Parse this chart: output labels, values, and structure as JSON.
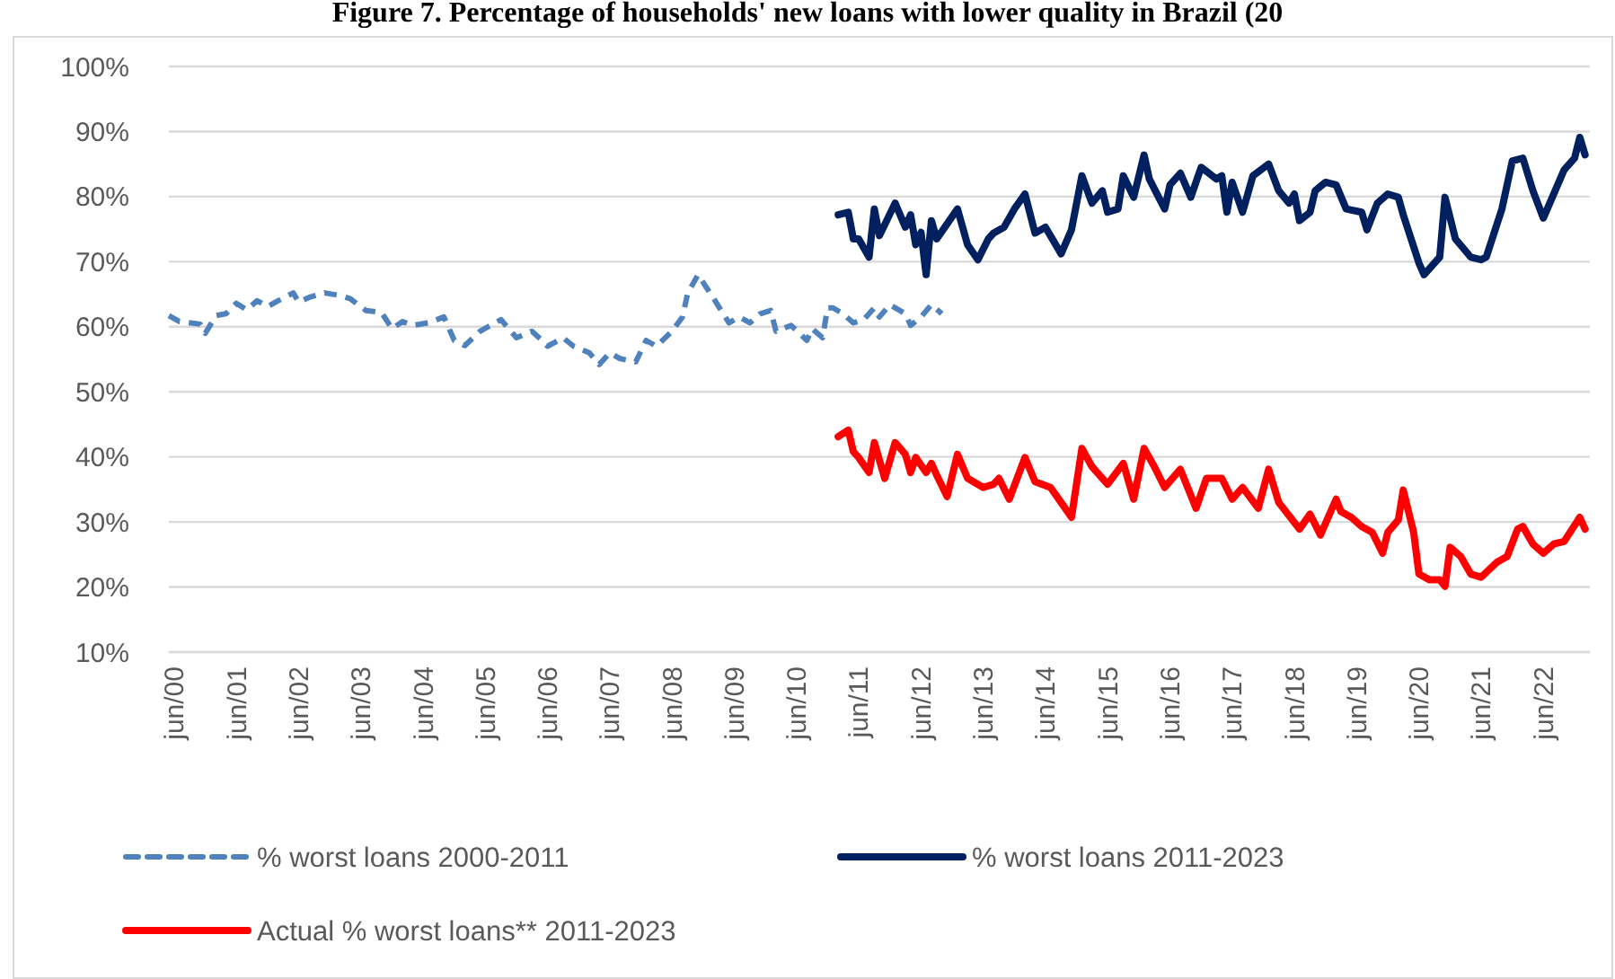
{
  "chart_data": {
    "type": "line",
    "title": "Figure 7. Percentage of households' new loans with lower quality in Brazil (20",
    "xlim": [
      "2000-05",
      "2023-03"
    ],
    "xticks": [
      {
        "value": "2000-06",
        "label": "jun/00"
      },
      {
        "value": "2001-06",
        "label": "jun/01"
      },
      {
        "value": "2002-06",
        "label": "jun/02"
      },
      {
        "value": "2003-06",
        "label": "jun/03"
      },
      {
        "value": "2004-06",
        "label": "jun/04"
      },
      {
        "value": "2005-06",
        "label": "jun/05"
      },
      {
        "value": "2006-06",
        "label": "jun/06"
      },
      {
        "value": "2007-06",
        "label": "jun/07"
      },
      {
        "value": "2008-06",
        "label": "jun/08"
      },
      {
        "value": "2009-06",
        "label": "jun/09"
      },
      {
        "value": "2010-06",
        "label": "jun/10"
      },
      {
        "value": "2011-06",
        "label": "jun/11"
      },
      {
        "value": "2012-06",
        "label": "jun/12"
      },
      {
        "value": "2013-06",
        "label": "jun/13"
      },
      {
        "value": "2014-06",
        "label": "jun/14"
      },
      {
        "value": "2015-06",
        "label": "jun/15"
      },
      {
        "value": "2016-06",
        "label": "jun/16"
      },
      {
        "value": "2017-06",
        "label": "jun/17"
      },
      {
        "value": "2018-06",
        "label": "jun/18"
      },
      {
        "value": "2019-06",
        "label": "jun/19"
      },
      {
        "value": "2020-06",
        "label": "jun/20"
      },
      {
        "value": "2021-06",
        "label": "jun/21"
      },
      {
        "value": "2022-06",
        "label": "jun/22"
      }
    ],
    "ylim": [
      10,
      100
    ],
    "yticks": [
      {
        "value": 10,
        "label": "10%"
      },
      {
        "value": 20,
        "label": "20%"
      },
      {
        "value": 30,
        "label": "30%"
      },
      {
        "value": 40,
        "label": "40%"
      },
      {
        "value": 50,
        "label": "50%"
      },
      {
        "value": 60,
        "label": "60%"
      },
      {
        "value": 70,
        "label": "70%"
      },
      {
        "value": 80,
        "label": "80%"
      },
      {
        "value": 90,
        "label": "90%"
      },
      {
        "value": 100,
        "label": "100%"
      }
    ],
    "grid": "y",
    "legend": "bottom",
    "marker": "none",
    "series": [
      {
        "name": "% worst loans 2000-2011",
        "color": "#4f81bd",
        "line_style": "dashed",
        "x": [
          "2000-05",
          "2000-07",
          "2000-11",
          "2000-12",
          "2001-02",
          "2001-04",
          "2001-06",
          "2001-08",
          "2001-10",
          "2001-12",
          "2002-02",
          "2002-05",
          "2002-06",
          "2002-08",
          "2002-11",
          "2003-02",
          "2003-04",
          "2003-07",
          "2003-10",
          "2003-12",
          "2004-02",
          "2004-04",
          "2004-07",
          "2004-10",
          "2004-12",
          "2005-02",
          "2005-05",
          "2005-07",
          "2005-09",
          "2005-12",
          "2006-03",
          "2006-05",
          "2006-06",
          "2006-09",
          "2006-11",
          "2007-02",
          "2007-04",
          "2007-06",
          "2007-08",
          "2007-11",
          "2008-01",
          "2008-03",
          "2008-06",
          "2008-08",
          "2008-09",
          "2008-11",
          "2009-02",
          "2009-05",
          "2009-07",
          "2009-09",
          "2009-11",
          "2010-01",
          "2010-02",
          "2010-05",
          "2010-08",
          "2010-09",
          "2010-11",
          "2010-12",
          "2011-01",
          "2011-03",
          "2011-05",
          "2011-07",
          "2011-09",
          "2011-10",
          "2011-12",
          "2012-03",
          "2012-04",
          "2012-06",
          "2012-08",
          "2012-10"
        ],
        "values": [
          61.7,
          60.8,
          60.4,
          59.0,
          61.7,
          62.0,
          63.6,
          62.6,
          64.0,
          63.1,
          64.0,
          65.2,
          63.8,
          64.5,
          65.2,
          64.8,
          64.3,
          62.5,
          62.2,
          59.7,
          60.8,
          60.2,
          60.6,
          61.5,
          57.9,
          57.1,
          59.3,
          60.2,
          61.1,
          58.3,
          59.3,
          57.9,
          57.0,
          58.3,
          57.0,
          56.0,
          54.2,
          56.0,
          55.1,
          54.6,
          57.9,
          57.0,
          59.3,
          61.5,
          65.2,
          68.0,
          64.3,
          60.6,
          61.5,
          60.6,
          62.0,
          62.5,
          59.3,
          60.2,
          57.9,
          59.7,
          58.3,
          62.9,
          62.9,
          62.0,
          60.6,
          61.1,
          62.9,
          61.5,
          63.4,
          62.0,
          60.2,
          61.5,
          63.4,
          62.0
        ]
      },
      {
        "name": "% worst loans 2011-2023",
        "color": "#002060",
        "line_style": "solid",
        "x": [
          "2011-02",
          "2011-04",
          "2011-05",
          "2011-06",
          "2011-08",
          "2011-09",
          "2011-10",
          "2012-01",
          "2012-03",
          "2012-04",
          "2012-05",
          "2012-06",
          "2012-07",
          "2012-08",
          "2012-09",
          "2013-01",
          "2013-03",
          "2013-05",
          "2013-07",
          "2013-08",
          "2013-10",
          "2013-12",
          "2014-02",
          "2014-04",
          "2014-06",
          "2014-09",
          "2014-11",
          "2015-01",
          "2015-03",
          "2015-05",
          "2015-06",
          "2015-08",
          "2015-09",
          "2015-11",
          "2016-01",
          "2016-02",
          "2016-05",
          "2016-06",
          "2016-08",
          "2016-10",
          "2016-12",
          "2017-03",
          "2017-04",
          "2017-05",
          "2017-06",
          "2017-08",
          "2017-10",
          "2018-01",
          "2018-03",
          "2018-05",
          "2018-06",
          "2018-07",
          "2018-09",
          "2018-10",
          "2018-12",
          "2019-02",
          "2019-04",
          "2019-07",
          "2019-08",
          "2019-10",
          "2019-12",
          "2020-02",
          "2020-03",
          "2020-06",
          "2020-07",
          "2020-10",
          "2020-11",
          "2021-01",
          "2021-04",
          "2021-06",
          "2021-07",
          "2021-10",
          "2021-12",
          "2022-02",
          "2022-04",
          "2022-06",
          "2022-10",
          "2022-12",
          "2023-01",
          "2023-02"
        ],
        "values": [
          77.2,
          77.6,
          73.5,
          73.5,
          70.7,
          78.1,
          74.0,
          79.0,
          75.3,
          77.2,
          72.6,
          74.5,
          68.0,
          76.3,
          73.5,
          78.1,
          72.6,
          70.3,
          73.5,
          74.4,
          75.3,
          78.1,
          80.4,
          74.4,
          75.3,
          71.2,
          74.9,
          83.2,
          79.0,
          80.9,
          77.6,
          78.1,
          83.2,
          79.9,
          86.4,
          82.7,
          78.1,
          81.8,
          83.6,
          79.9,
          84.5,
          82.7,
          83.2,
          77.6,
          82.2,
          77.6,
          83.2,
          85.0,
          80.9,
          79.0,
          80.4,
          76.3,
          77.6,
          80.9,
          82.2,
          81.8,
          78.1,
          77.6,
          74.9,
          79.0,
          80.4,
          79.9,
          77.2,
          69.8,
          68.0,
          70.7,
          79.9,
          73.5,
          70.7,
          70.3,
          70.7,
          78.1,
          85.5,
          85.9,
          80.9,
          76.7,
          84.1,
          85.9,
          89.1,
          86.4
        ]
      },
      {
        "name": "Actual % worst loans** 2011-2023",
        "color": "#ff0000",
        "line_style": "solid",
        "x": [
          "2011-02",
          "2011-04",
          "2011-05",
          "2011-06",
          "2011-08",
          "2011-09",
          "2011-11",
          "2012-01",
          "2012-03",
          "2012-04",
          "2012-05",
          "2012-07",
          "2012-08",
          "2012-09",
          "2012-11",
          "2013-01",
          "2013-03",
          "2013-06",
          "2013-08",
          "2013-09",
          "2013-11",
          "2014-02",
          "2014-04",
          "2014-07",
          "2014-09",
          "2014-11",
          "2015-01",
          "2015-03",
          "2015-06",
          "2015-09",
          "2015-11",
          "2016-01",
          "2016-03",
          "2016-05",
          "2016-08",
          "2016-11",
          "2017-01",
          "2017-04",
          "2017-06",
          "2017-08",
          "2017-11",
          "2018-01",
          "2018-03",
          "2018-07",
          "2018-09",
          "2018-11",
          "2019-02",
          "2019-03",
          "2019-05",
          "2019-07",
          "2019-09",
          "2019-11",
          "2019-12",
          "2020-02",
          "2020-03",
          "2020-05",
          "2020-06",
          "2020-08",
          "2020-10",
          "2020-11",
          "2020-12",
          "2021-02",
          "2021-04",
          "2021-06",
          "2021-09",
          "2021-11",
          "2022-01",
          "2022-02",
          "2022-04",
          "2022-06",
          "2022-08",
          "2022-10",
          "2023-01",
          "2023-02"
        ],
        "values": [
          43.1,
          44.1,
          40.8,
          39.9,
          37.6,
          42.2,
          36.7,
          42.2,
          40.4,
          37.6,
          39.9,
          37.6,
          39.0,
          37.2,
          33.9,
          40.4,
          36.7,
          35.3,
          35.8,
          36.7,
          33.5,
          39.9,
          36.2,
          35.3,
          33.0,
          30.7,
          41.3,
          38.5,
          35.8,
          39.0,
          33.5,
          41.3,
          38.5,
          35.3,
          38.1,
          32.1,
          36.7,
          36.7,
          33.5,
          35.3,
          32.1,
          38.1,
          33.0,
          28.9,
          31.2,
          28.0,
          33.5,
          31.6,
          30.7,
          29.3,
          28.4,
          25.2,
          28.4,
          30.3,
          34.9,
          28.4,
          22.0,
          21.1,
          21.1,
          20.1,
          26.1,
          24.7,
          22.0,
          21.5,
          23.8,
          24.7,
          28.9,
          29.3,
          26.6,
          25.2,
          26.6,
          27.0,
          30.7,
          28.9
        ]
      }
    ]
  }
}
